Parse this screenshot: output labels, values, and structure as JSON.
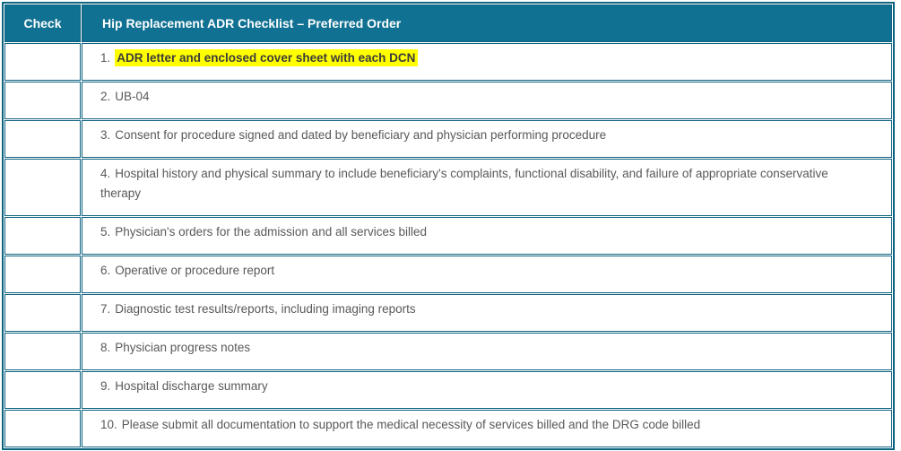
{
  "colors": {
    "header_background": "#107192",
    "table_border": "#0e6380",
    "highlight_background": "#ffff00",
    "body_text": "#595959",
    "header_text": "#ffffff"
  },
  "table": {
    "check_header": "Check",
    "title_header": "Hip Replacement ADR Checklist – Preferred Order",
    "rows": [
      {
        "number": "1.",
        "text": "ADR letter and enclosed cover sheet with each DCN",
        "highlighted": true
      },
      {
        "number": "2.",
        "text": "UB-04",
        "highlighted": false
      },
      {
        "number": "3.",
        "text": "Consent for procedure signed and dated by beneficiary and physician performing procedure",
        "highlighted": false
      },
      {
        "number": "4.",
        "text": "Hospital history and physical summary to include beneficiary's complaints, functional disability, and failure of appropriate conservative therapy",
        "highlighted": false
      },
      {
        "number": "5.",
        "text": "Physician's orders for the admission and all services billed",
        "highlighted": false
      },
      {
        "number": "6.",
        "text": "Operative or procedure report",
        "highlighted": false
      },
      {
        "number": "7.",
        "text": "Diagnostic test results/reports, including imaging reports",
        "highlighted": false
      },
      {
        "number": "8.",
        "text": "Physician progress notes",
        "highlighted": false
      },
      {
        "number": "9.",
        "text": "Hospital discharge summary",
        "highlighted": false
      },
      {
        "number": "10.",
        "text": "Please submit all documentation to support the medical necessity of services billed and the DRG code billed",
        "highlighted": false
      }
    ]
  }
}
